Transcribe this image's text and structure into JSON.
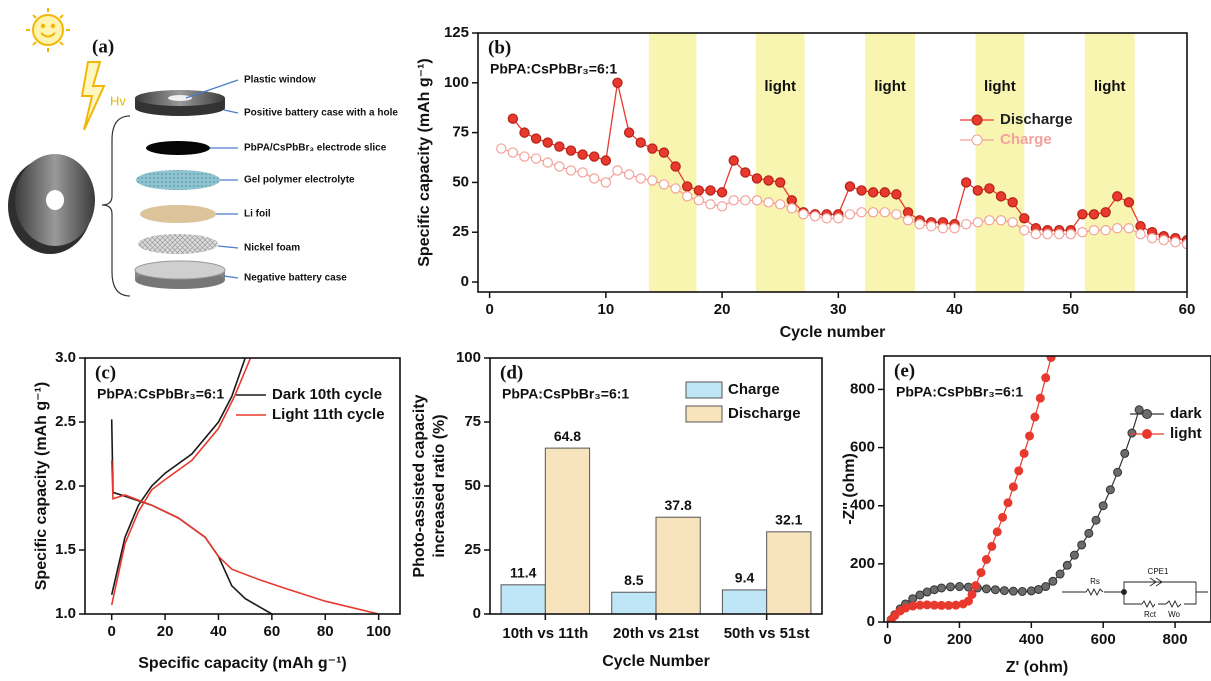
{
  "diagram": {
    "panel_label": "(a)",
    "light_label": "Hv",
    "labels": [
      "Plastic window",
      "Positive battery case with a hole",
      "PbPA/CsPbBr₃ electrode slice",
      "Gel polymer electrolyte",
      "Li foil",
      "Nickel foam",
      "Negative battery case"
    ]
  },
  "chart_data": [
    {
      "type": "line",
      "panel": "(b)",
      "annotation": "PbPA:CsPbBr₃=6:1",
      "xlabel": "Cycle number",
      "ylabel": "Specific capacity (mAh g⁻¹)",
      "x": [
        1,
        2,
        3,
        4,
        5,
        6,
        7,
        8,
        9,
        10,
        11,
        12,
        13,
        14,
        15,
        16,
        17,
        18,
        19,
        20,
        21,
        22,
        23,
        24,
        25,
        26,
        27,
        28,
        29,
        30,
        31,
        32,
        33,
        34,
        35,
        36,
        37,
        38,
        39,
        40,
        41,
        42,
        43,
        44,
        45,
        46,
        47,
        48,
        49,
        50,
        51,
        52,
        53,
        54,
        55,
        56,
        57,
        58,
        59,
        60
      ],
      "series": [
        {
          "name": "Discharge",
          "color": "#e8392f",
          "marker": "filled",
          "values": [
            null,
            82,
            75,
            72,
            70,
            68,
            66,
            64,
            63,
            61,
            100,
            75,
            70,
            67,
            65,
            58,
            48,
            46,
            46,
            45,
            61,
            55,
            52,
            51,
            50,
            41,
            35,
            34,
            34,
            34,
            48,
            46,
            45,
            45,
            44,
            35,
            31,
            30,
            30,
            29,
            50,
            46,
            47,
            43,
            40,
            32,
            27,
            26,
            26,
            26,
            34,
            34,
            35,
            43,
            40,
            28,
            25,
            23,
            22,
            21
          ]
        },
        {
          "name": "Charge",
          "color": "#f4a29b",
          "marker": "hollow",
          "values": [
            67,
            65,
            63,
            62,
            60,
            58,
            56,
            55,
            52,
            50,
            56,
            54,
            52,
            51,
            49,
            47,
            43,
            41,
            39,
            38,
            41,
            41,
            41,
            40,
            39,
            37,
            34,
            33,
            32,
            32,
            34,
            35,
            35,
            35,
            34,
            31,
            29,
            28,
            27,
            27,
            29,
            30,
            31,
            31,
            30,
            26,
            24,
            24,
            24,
            24,
            25,
            26,
            26,
            27,
            27,
            24,
            22,
            21,
            20,
            19
          ]
        }
      ],
      "xlim": [
        -1,
        60
      ],
      "ylim": [
        -5,
        125
      ],
      "xticks": [
        0,
        10,
        20,
        30,
        40,
        50,
        60
      ],
      "yticks": [
        0,
        25,
        50,
        75,
        100,
        125
      ],
      "highlights": {
        "color": "#f8f5b0",
        "ranges": [
          {
            "x": [
              13.7,
              17.8
            ]
          },
          {
            "x": [
              22.9,
              27.1
            ],
            "label": "light"
          },
          {
            "x": [
              32.3,
              36.6
            ],
            "label": "light"
          },
          {
            "x": [
              41.8,
              46.0
            ],
            "label": "light"
          },
          {
            "x": [
              51.2,
              55.5
            ],
            "label": "light"
          }
        ]
      }
    },
    {
      "type": "line",
      "panel": "(c)",
      "annotation": "PbPA:CsPbBr₃=6:1",
      "xlabel": "Specific capacity (mAh g⁻¹)",
      "ylabel": "Specific capacity (mAh g⁻¹)",
      "series": [
        {
          "name": "Dark  10th cycle",
          "color": "#1a1a1a",
          "segments": [
            {
              "x": [
                0,
                0.5,
                5,
                15,
                25,
                35,
                40,
                45,
                50,
                55,
                60
              ],
              "y": [
                2.52,
                1.95,
                1.92,
                1.85,
                1.75,
                1.6,
                1.45,
                1.22,
                1.12,
                1.06,
                1.0
              ]
            },
            {
              "x": [
                0,
                5,
                10,
                15,
                20,
                30,
                40,
                45,
                50
              ],
              "y": [
                1.15,
                1.6,
                1.85,
                2.0,
                2.1,
                2.25,
                2.5,
                2.7,
                3.0
              ]
            }
          ]
        },
        {
          "name": "Light 11th cycle",
          "color": "#e8392f",
          "segments": [
            {
              "x": [
                0,
                0.5,
                5,
                15,
                25,
                35,
                40,
                45,
                55,
                65,
                80,
                100
              ],
              "y": [
                2.2,
                1.9,
                1.93,
                1.85,
                1.75,
                1.6,
                1.45,
                1.35,
                1.27,
                1.2,
                1.1,
                1.0
              ]
            },
            {
              "x": [
                0,
                5,
                10,
                15,
                20,
                30,
                40,
                46,
                52
              ],
              "y": [
                1.07,
                1.55,
                1.8,
                1.97,
                2.05,
                2.2,
                2.45,
                2.7,
                3.0
              ]
            }
          ]
        }
      ],
      "xlim": [
        -10,
        108
      ],
      "ylim": [
        1,
        3
      ],
      "xticks": [
        0,
        20,
        40,
        60,
        80,
        100
      ],
      "yticks": [
        {
          "value": 1,
          "label": "1.0"
        },
        1.5,
        {
          "value": 2,
          "label": "2.0"
        },
        2.5,
        {
          "value": 3,
          "label": "3.0"
        }
      ]
    },
    {
      "type": "bar",
      "panel": "(d)",
      "annotation": "PbPA:CsPbBr₃=6:1",
      "xlabel": "Cycle Number",
      "ylabel": [
        "Photo-assisted capacity",
        "increased ratio (%)"
      ],
      "categories": [
        "10th vs 11th",
        "20th vs 21st",
        "50th vs 51st"
      ],
      "series": [
        {
          "name": "Charge",
          "color": "#bfe6f7",
          "values": [
            11.4,
            8.5,
            9.4
          ]
        },
        {
          "name": "Discharge",
          "color": "#f7e4bd",
          "values": [
            64.8,
            37.8,
            32.1
          ]
        }
      ],
      "ylim": [
        0,
        100
      ],
      "yticks": [
        0,
        25,
        50,
        75,
        100
      ]
    },
    {
      "type": "scatter",
      "panel": "(e)",
      "annotation": "PbPA:CsPbBr₃=6:1",
      "xlabel": "Z' (ohm)",
      "ylabel": "-Z'' (ohm)",
      "series": [
        {
          "name": "dark",
          "color": "#333333",
          "x": [
            10,
            20,
            35,
            50,
            70,
            90,
            110,
            130,
            150,
            175,
            200,
            225,
            250,
            275,
            300,
            325,
            350,
            375,
            400,
            420,
            440,
            460,
            480,
            500,
            520,
            540,
            560,
            580,
            600,
            620,
            640,
            660,
            680,
            700
          ],
          "y": [
            8,
            25,
            45,
            62,
            80,
            93,
            103,
            111,
            117,
            121,
            122,
            120,
            117,
            114,
            111,
            108,
            106,
            105,
            107,
            112,
            122,
            140,
            165,
            195,
            230,
            265,
            305,
            350,
            400,
            455,
            515,
            580,
            650,
            730
          ]
        },
        {
          "name": "light",
          "color": "#e8392f",
          "x": [
            10,
            20,
            35,
            50,
            70,
            90,
            110,
            130,
            150,
            170,
            190,
            210,
            225,
            235,
            245,
            260,
            275,
            290,
            305,
            320,
            335,
            350,
            365,
            380,
            395,
            410,
            425,
            440,
            455
          ],
          "y": [
            6,
            22,
            38,
            48,
            55,
            58,
            59,
            58,
            57,
            57,
            58,
            62,
            72,
            95,
            125,
            170,
            215,
            260,
            310,
            360,
            410,
            465,
            520,
            580,
            640,
            705,
            770,
            840,
            910
          ]
        }
      ],
      "xlim": [
        -10,
        900
      ],
      "ylim": [
        0,
        915
      ],
      "xticks": [
        0,
        200,
        400,
        600,
        800
      ],
      "yticks": [
        0,
        200,
        400,
        600,
        800
      ],
      "inset_labels": [
        "Rs",
        "CPE1",
        "Rct",
        "Wo"
      ]
    }
  ]
}
